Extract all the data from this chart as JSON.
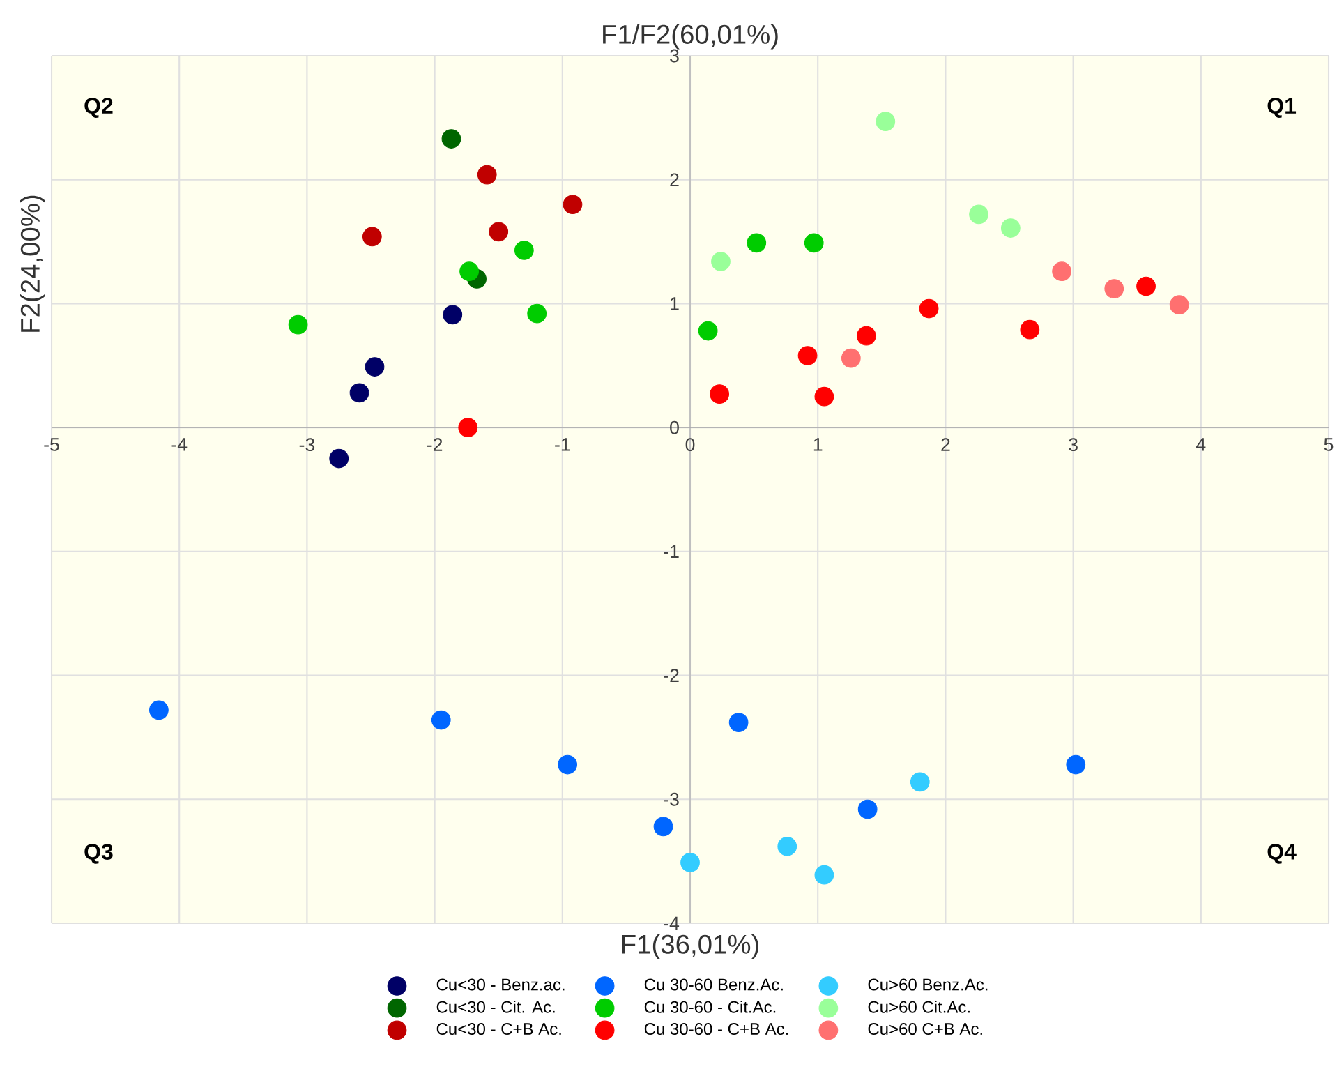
{
  "chart_data": {
    "type": "scatter",
    "title": "F1/F2(60,01%)",
    "xlabel": "F1(36,01%)",
    "ylabel": "F2(24,00%)",
    "xlim": [
      -5,
      5
    ],
    "ylim": [
      -4,
      3
    ],
    "xticks": [
      -5,
      -4,
      -3,
      -2,
      -1,
      0,
      1,
      2,
      3,
      4,
      5
    ],
    "yticks": [
      -4,
      -3,
      -2,
      -1,
      0,
      1,
      2,
      3
    ],
    "grid": true,
    "marker": "circle",
    "legend": "bottom",
    "annotations": [
      "Q2",
      "Q1",
      "Q3",
      "Q4"
    ],
    "series": [
      {
        "name": "Cu<30 - Benz.ac.",
        "color": "#000066",
        "x": [
          -1.86,
          -2.47,
          -2.59,
          -2.75
        ],
        "values": [
          0.91,
          0.49,
          0.28,
          -0.25
        ]
      },
      {
        "name": "Cu 30-60 Benz.Ac.",
        "color": "#0066ff",
        "x": [
          -4.16,
          -1.95,
          -0.96,
          -0.21,
          0.38,
          1.39,
          3.02
        ],
        "values": [
          -2.28,
          -2.36,
          -2.72,
          -3.22,
          -2.38,
          -3.08,
          -2.72
        ]
      },
      {
        "name": "Cu>60 Benz.Ac.",
        "color": "#33ccff",
        "x": [
          0.0,
          0.76,
          1.05,
          1.8
        ],
        "values": [
          -3.51,
          -3.38,
          -3.61,
          -2.86
        ]
      },
      {
        "name": "Cu<30 - Cit. Ac.",
        "color": "#006600",
        "x": [
          -1.87,
          -1.67
        ],
        "values": [
          2.33,
          1.2
        ]
      },
      {
        "name": "Cu 30-60 - Cit.Ac.",
        "color": "#00cc00",
        "x": [
          -3.07,
          -1.73,
          -1.3,
          -1.2,
          0.14,
          0.52,
          0.97
        ],
        "values": [
          0.83,
          1.26,
          1.43,
          0.92,
          0.78,
          1.49,
          1.49
        ]
      },
      {
        "name": "Cu>60 Cit.Ac.",
        "color": "#99ff99",
        "x": [
          0.24,
          1.53,
          2.26,
          2.51
        ],
        "values": [
          1.34,
          2.47,
          1.72,
          1.61
        ]
      },
      {
        "name": "Cu<30 - C+B Ac.",
        "color": "#c00000",
        "x": [
          -2.49,
          -1.59,
          -1.5,
          -0.92
        ],
        "values": [
          1.54,
          2.04,
          1.58,
          1.8
        ]
      },
      {
        "name": "Cu 30-60 - C+B Ac.",
        "color": "#ff0000",
        "x": [
          -1.74,
          0.23,
          0.92,
          1.05,
          1.38,
          1.87,
          2.66,
          3.57
        ],
        "values": [
          0.0,
          0.27,
          0.58,
          0.25,
          0.74,
          0.96,
          0.79,
          1.14
        ]
      },
      {
        "name": "Cu>60 C+B Ac.",
        "color": "#ff7070",
        "x": [
          1.26,
          2.91,
          3.32,
          3.83
        ],
        "values": [
          0.56,
          1.26,
          1.12,
          0.99
        ]
      }
    ]
  }
}
